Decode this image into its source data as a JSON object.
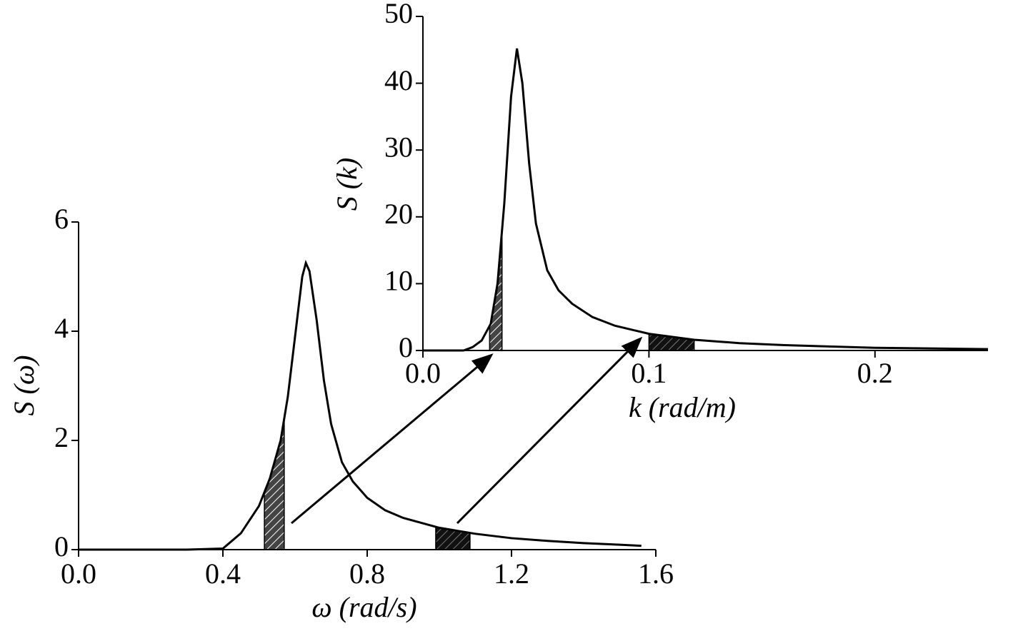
{
  "chart_data": [
    {
      "type": "line",
      "x_label": "ω (rad/s)",
      "y_label": "S (ω)",
      "x": [
        0,
        0.3,
        0.4,
        0.45,
        0.5,
        0.53,
        0.56,
        0.58,
        0.6,
        0.62,
        0.63,
        0.64,
        0.66,
        0.68,
        0.7,
        0.73,
        0.76,
        0.8,
        0.85,
        0.9,
        1.0,
        1.1,
        1.2,
        1.3,
        1.4,
        1.5,
        1.56
      ],
      "values": [
        0,
        0,
        0.02,
        0.3,
        0.8,
        1.3,
        2.0,
        2.8,
        3.9,
        5.0,
        5.25,
        5.1,
        4.2,
        3.1,
        2.3,
        1.6,
        1.25,
        0.95,
        0.72,
        0.58,
        0.4,
        0.29,
        0.21,
        0.16,
        0.12,
        0.09,
        0.07
      ],
      "color": "#000000",
      "highlight_ranges": [
        [
          0.515,
          0.57
        ],
        [
          0.99,
          1.085
        ]
      ],
      "xlim": [
        0,
        1.6
      ],
      "ylim": [
        0,
        6
      ],
      "xticks": [
        {
          "value": 0,
          "label": "0.0"
        },
        0.4,
        0.8,
        1.2,
        1.6
      ],
      "yticks": [
        0,
        2,
        4,
        6
      ]
    },
    {
      "type": "line",
      "x_label": "k (rad/m)",
      "y_label": "S (k)",
      "x": [
        0,
        0.018,
        0.022,
        0.026,
        0.03,
        0.033,
        0.036,
        0.039,
        0.0416,
        0.044,
        0.047,
        0.05,
        0.055,
        0.06,
        0.066,
        0.075,
        0.085,
        0.1,
        0.12,
        0.14,
        0.16,
        0.2,
        0.25
      ],
      "values": [
        0,
        0,
        0.5,
        1.5,
        4,
        10,
        22,
        38,
        45.2,
        40,
        28,
        19,
        12,
        9,
        7,
        5,
        3.7,
        2.5,
        1.6,
        1.1,
        0.8,
        0.4,
        0.2
      ],
      "color": "#000000",
      "highlight_ranges": [
        [
          0.0295,
          0.035
        ],
        [
          0.1,
          0.12
        ]
      ],
      "xlim": [
        0,
        0.25
      ],
      "ylim": [
        0,
        50
      ],
      "xticks": [
        {
          "value": 0,
          "label": "0.0"
        },
        0.1,
        0.2
      ],
      "yticks": [
        0,
        10,
        20,
        30,
        40,
        50
      ]
    }
  ]
}
